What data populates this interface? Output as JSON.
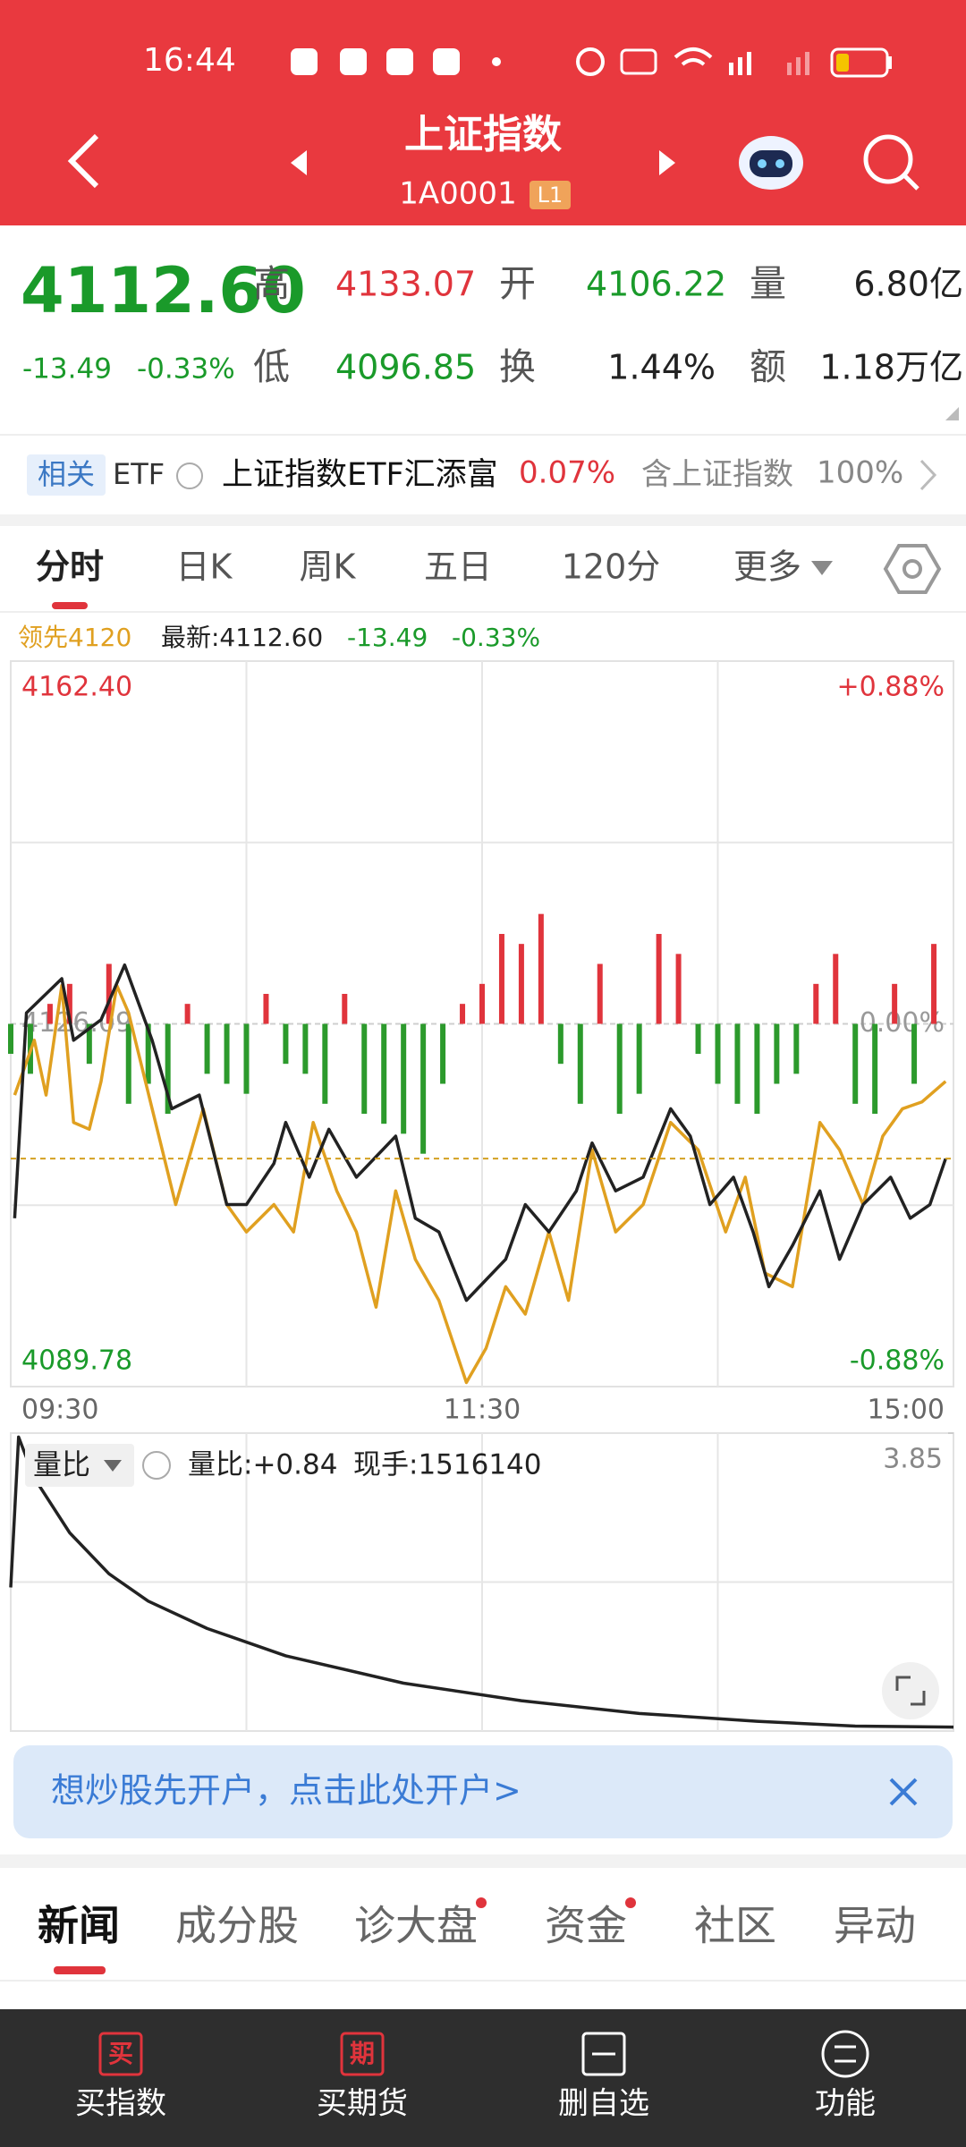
{
  "status_bar": {
    "time": "16:44"
  },
  "header": {
    "title": "上证指数",
    "code": "1A0001",
    "level": "L1"
  },
  "quote": {
    "last": "4112.60",
    "change": "-13.49",
    "change_pct": "-0.33%",
    "fields": [
      {
        "label": "高",
        "value": "4133.07"
      },
      {
        "label": "开",
        "value": "4106.22"
      },
      {
        "label": "量",
        "value": "6.80亿"
      },
      {
        "label": "低",
        "value": "4096.85"
      },
      {
        "label": "换",
        "value": "1.44%"
      },
      {
        "label": "额",
        "value": "1.18万亿"
      }
    ]
  },
  "etf": {
    "badge": "相关",
    "label": "ETF",
    "name": "上证指数ETF汇添富",
    "change": "0.07%",
    "contain_label": "含上证指数",
    "contain_pct": "100%"
  },
  "tabs": [
    "分时",
    "日K",
    "周K",
    "五日",
    "120分",
    "更多"
  ],
  "legend": {
    "lead": "领先4120",
    "latest": "最新:4112.60",
    "change": "-13.49",
    "change_pct": "-0.33%"
  },
  "chart": {
    "type": "line",
    "xlim": [
      0,
      240
    ],
    "xticks": [
      {
        "value": 0,
        "label": "09:30"
      },
      {
        "value": 120,
        "label": "11:30"
      },
      {
        "value": 240,
        "label": "15:00"
      }
    ],
    "ylim": [
      4089.78,
      4162.4
    ],
    "yticks": [
      {
        "value": 4162.4,
        "label": "4162.40"
      },
      {
        "value": 4126.09,
        "label": "4126.09"
      },
      {
        "value": 4089.78,
        "label": "4089.78"
      }
    ],
    "y2lim": [
      -0.88,
      0.88
    ],
    "y2ticks": [
      {
        "value": 0.88,
        "label": "+0.88%"
      },
      {
        "value": 0,
        "label": "0.00%"
      },
      {
        "value": -0.88,
        "label": "-0.88%"
      }
    ],
    "latest_line": 4112.6,
    "series": [
      {
        "color": "#e0a020",
        "x": [
          1,
          6,
          9,
          13,
          16,
          20,
          23,
          27,
          30,
          36,
          42,
          49,
          55,
          60,
          67,
          72,
          77,
          83,
          88,
          93,
          98,
          103,
          109,
          116,
          121,
          126,
          131,
          137,
          142,
          148,
          154,
          161,
          168,
          175,
          182,
          187,
          192,
          199,
          206,
          211,
          217,
          222,
          227,
          232,
          238
        ],
        "values": [
          4118.96,
          4124.45,
          4118.96,
          4129.93,
          4116.22,
          4115.54,
          4120.33,
          4129.93,
          4127.19,
          4117.59,
          4108.0,
          4117.59,
          4108.0,
          4105.26,
          4108.0,
          4105.26,
          4116.22,
          4109.37,
          4105.26,
          4097.73,
          4109.37,
          4102.52,
          4098.41,
          4090.19,
          4093.62,
          4099.78,
          4097.04,
          4105.26,
          4098.41,
          4113.48,
          4105.26,
          4108.0,
          4116.22,
          4113.48,
          4105.26,
          4110.74,
          4101.15,
          4099.78,
          4116.22,
          4113.48,
          4108.0,
          4114.85,
          4117.59,
          4118.28,
          4120.33
        ]
      },
      {
        "color": "#222222",
        "x": [
          1,
          4,
          13,
          16,
          23,
          29,
          36,
          41,
          48,
          55,
          60,
          67,
          70,
          76,
          81,
          88,
          98,
          103,
          109,
          116,
          121,
          126,
          131,
          137,
          144,
          148,
          154,
          161,
          168,
          173,
          178,
          184,
          189,
          193,
          199,
          206,
          211,
          217,
          224,
          229,
          234,
          238
        ],
        "values": [
          4106.63,
          4127.19,
          4130.61,
          4124.45,
          4126.5,
          4131.98,
          4124.45,
          4117.59,
          4118.96,
          4108.0,
          4108.0,
          4112.11,
          4116.22,
          4110.74,
          4115.54,
          4110.74,
          4114.85,
          4106.63,
          4105.26,
          4098.41,
          4100.47,
          4102.52,
          4108.0,
          4105.26,
          4109.37,
          4114.17,
          4109.37,
          4110.74,
          4117.59,
          4114.85,
          4108.0,
          4110.74,
          4105.26,
          4099.78,
          4103.89,
          4109.37,
          4102.52,
          4108.0,
          4110.74,
          4106.63,
          4108.0,
          4112.6
        ]
      }
    ],
    "bars": {
      "up_color": "#e0343c",
      "down_color": "#2c9a2c",
      "x": [
        0,
        5,
        10,
        15,
        20,
        25,
        30,
        35,
        40,
        45,
        50,
        55,
        60,
        65,
        70,
        75,
        80,
        85,
        90,
        95,
        100,
        105,
        110,
        115,
        120,
        125,
        130,
        135,
        140,
        145,
        150,
        155,
        160,
        165,
        170,
        175,
        180,
        185,
        190,
        195,
        200,
        205,
        210,
        215,
        220,
        225,
        230,
        235
      ],
      "values": [
        -3,
        -5,
        2,
        4,
        -4,
        6,
        -8,
        -6,
        -9,
        2,
        -5,
        -6,
        -7,
        3,
        -4,
        -5,
        -8,
        3,
        -9,
        -10,
        -11,
        -13,
        -6,
        2,
        4,
        9,
        8,
        11,
        -4,
        -8,
        6,
        -9,
        -7,
        9,
        7,
        -3,
        -6,
        -8,
        -9,
        -6,
        -5,
        4,
        7,
        -8,
        -9,
        4,
        -6,
        8
      ]
    }
  },
  "volume_chart": {
    "type": "line",
    "selector": "量比",
    "ratio": "量比:+0.84",
    "hand": "现手:1516140",
    "xlim": [
      0,
      240
    ],
    "ylim": [
      0.8,
      3.85
    ],
    "yticks": [
      3.85
    ],
    "series": [
      {
        "color": "#222222",
        "x": [
          0,
          2,
          6,
          15,
          25,
          35,
          50,
          70,
          100,
          130,
          160,
          190,
          215,
          240
        ],
        "values": [
          2.27,
          3.81,
          3.39,
          2.83,
          2.41,
          2.13,
          1.85,
          1.57,
          1.29,
          1.11,
          0.98,
          0.9,
          0.85,
          0.84
        ]
      }
    ]
  },
  "banner": {
    "text": "想炒股先开户，点击此处开户>"
  },
  "news_tabs": [
    "新闻",
    "成分股",
    "诊大盘",
    "资金",
    "社区",
    "异动"
  ],
  "bottom_nav": [
    {
      "icon": "买",
      "label": "买指数"
    },
    {
      "icon": "期",
      "label": "买期货"
    },
    {
      "label": "删自选"
    },
    {
      "label": "功能"
    }
  ]
}
